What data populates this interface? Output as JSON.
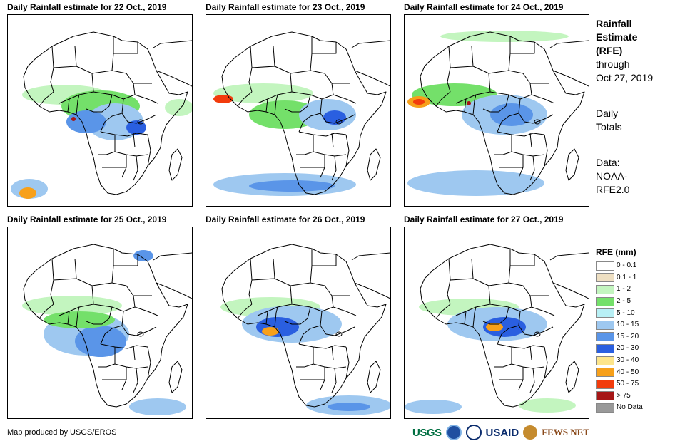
{
  "panels": [
    {
      "title": "Daily Rainfall estimate for 22 Oct., 2019"
    },
    {
      "title": "Daily Rainfall estimate for 23 Oct., 2019"
    },
    {
      "title": "Daily Rainfall estimate for 24 Oct., 2019"
    },
    {
      "title": "Daily Rainfall estimate for 25 Oct., 2019"
    },
    {
      "title": "Daily Rainfall estimate for 26 Oct., 2019"
    },
    {
      "title": "Daily Rainfall estimate for 27 Oct., 2019"
    }
  ],
  "side": {
    "title_l1": "Rainfall",
    "title_l2": "Estimate",
    "title_l3": "(RFE)",
    "through_l1": "through",
    "through_l2": "Oct 27, 2019",
    "daily_l1": "Daily",
    "daily_l2": "Totals",
    "data_l1": "Data:",
    "data_l2": "NOAA-",
    "data_l3": "RFE2.0"
  },
  "legend": {
    "title": "RFE (mm)",
    "items": [
      {
        "label": "0 - 0.1",
        "color": "#ffffff"
      },
      {
        "label": "0.1 - 1",
        "color": "#eedfc2"
      },
      {
        "label": "1 - 2",
        "color": "#c3f5bf"
      },
      {
        "label": "2 - 5",
        "color": "#74e06a"
      },
      {
        "label": "5 - 10",
        "color": "#b8f0f5"
      },
      {
        "label": "10 - 15",
        "color": "#9ec8f0"
      },
      {
        "label": "15 - 20",
        "color": "#5a95e8"
      },
      {
        "label": "20 - 30",
        "color": "#2a5fe0"
      },
      {
        "label": "30 - 40",
        "color": "#fde58a"
      },
      {
        "label": "40 - 50",
        "color": "#f7a01a"
      },
      {
        "label": "50 - 75",
        "color": "#f23c0c"
      },
      {
        "label": "> 75",
        "color": "#a61717"
      },
      {
        "label": "No Data",
        "color": "#999999"
      }
    ]
  },
  "credit": "Map produced by USGS/EROS",
  "logos": {
    "usgs": "USGS",
    "usaid": "USAID",
    "fews": "FEWS NET"
  }
}
